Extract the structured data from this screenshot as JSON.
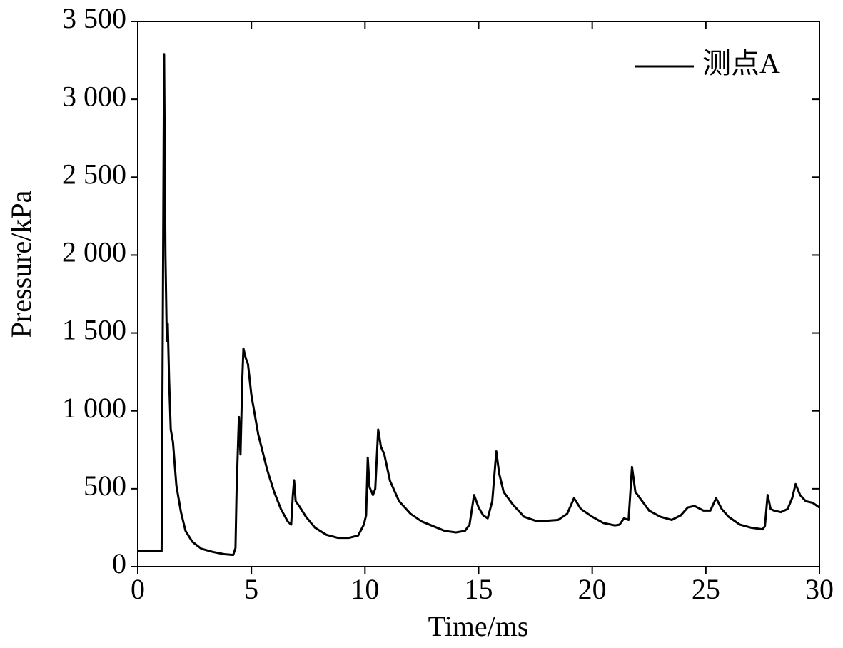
{
  "chart_data": {
    "type": "line",
    "xlabel": "Time/ms",
    "ylabel": "Pressure/kPa",
    "xlim": [
      0,
      30
    ],
    "xticks": [
      0,
      5,
      10,
      15,
      20,
      25,
      30
    ],
    "ylim": [
      0,
      3500
    ],
    "yticks": [
      0,
      500,
      {
        "value": 1000,
        "label": "1 000"
      },
      {
        "value": 1500,
        "label": "1 500"
      },
      {
        "value": 2000,
        "label": "2 000"
      },
      {
        "value": 2500,
        "label": "2 500"
      },
      {
        "value": 3000,
        "label": "3 000"
      },
      {
        "value": 3500,
        "label": "3 500"
      }
    ],
    "legend": "upper right",
    "series": [
      {
        "name": "测点A",
        "color": "#000000",
        "x": [
          0,
          1.05,
          1.1,
          1.16,
          1.22,
          1.28,
          1.32,
          1.38,
          1.45,
          1.55,
          1.7,
          1.9,
          2.1,
          2.4,
          2.8,
          3.3,
          3.8,
          4.2,
          4.3,
          4.35,
          4.45,
          4.52,
          4.6,
          4.65,
          4.75,
          4.85,
          5.0,
          5.3,
          5.7,
          6.0,
          6.3,
          6.6,
          6.75,
          6.82,
          6.88,
          6.95,
          7.1,
          7.4,
          7.8,
          8.3,
          8.8,
          9.3,
          9.7,
          9.95,
          10.05,
          10.12,
          10.2,
          10.35,
          10.45,
          10.58,
          10.7,
          10.85,
          11.1,
          11.5,
          12,
          12.5,
          13,
          13.5,
          14,
          14.4,
          14.6,
          14.8,
          15.0,
          15.2,
          15.4,
          15.6,
          15.78,
          15.9,
          16.1,
          16.5,
          17,
          17.5,
          18,
          18.5,
          18.9,
          19.2,
          19.5,
          20,
          20.5,
          21,
          21.2,
          21.4,
          21.6,
          21.75,
          21.9,
          22.2,
          22.5,
          23,
          23.5,
          23.9,
          24.2,
          24.5,
          24.9,
          25.2,
          25.45,
          25.7,
          26,
          26.5,
          27,
          27.5,
          27.6,
          27.72,
          27.85,
          28.0,
          28.3,
          28.6,
          28.8,
          28.95,
          29.15,
          29.4,
          29.7,
          30
        ],
        "values": [
          100,
          100,
          1500,
          3290,
          2000,
          1450,
          1560,
          1200,
          880,
          800,
          520,
          350,
          230,
          160,
          115,
          95,
          80,
          75,
          120,
          500,
          960,
          720,
          1200,
          1400,
          1340,
          1300,
          1100,
          850,
          620,
          480,
          370,
          290,
          270,
          450,
          555,
          420,
          390,
          320,
          250,
          205,
          185,
          185,
          200,
          270,
          330,
          700,
          510,
          460,
          500,
          880,
          770,
          720,
          550,
          420,
          340,
          290,
          260,
          230,
          220,
          230,
          270,
          460,
          380,
          330,
          310,
          420,
          740,
          600,
          480,
          400,
          320,
          295,
          295,
          300,
          340,
          440,
          370,
          320,
          280,
          265,
          270,
          310,
          300,
          640,
          480,
          420,
          360,
          320,
          300,
          330,
          380,
          390,
          360,
          360,
          440,
          370,
          320,
          270,
          250,
          240,
          260,
          460,
          370,
          360,
          350,
          370,
          440,
          530,
          460,
          420,
          410,
          380
        ]
      }
    ]
  }
}
